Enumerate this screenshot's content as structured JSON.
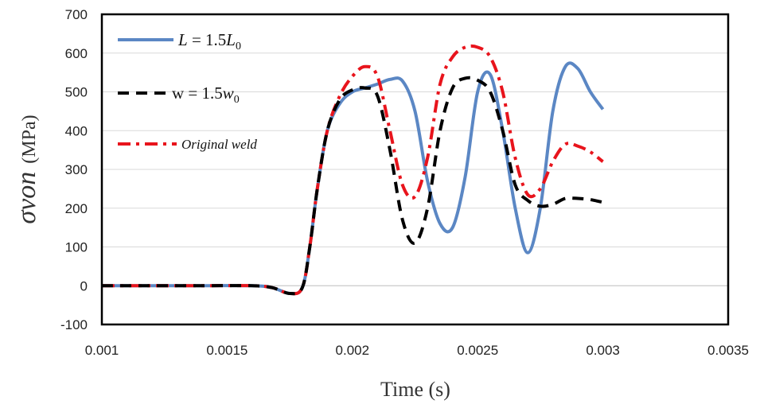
{
  "chart_data": {
    "type": "line",
    "xlabel": "Time (s)",
    "ylabel_symbol": "σvon",
    "ylabel_unit": "(MPa)",
    "xlim": [
      0.001,
      0.0035
    ],
    "ylim": [
      -100,
      700
    ],
    "xticks": [
      "0.001",
      "0.0015",
      "0.002",
      "0.0025",
      "0.003",
      "0.0035"
    ],
    "xtick_values": [
      0.001,
      0.0015,
      0.002,
      0.0025,
      0.003,
      0.0035
    ],
    "yticks": [
      "-100",
      "0",
      "100",
      "200",
      "300",
      "400",
      "500",
      "600",
      "700"
    ],
    "ytick_values": [
      -100,
      0,
      100,
      200,
      300,
      400,
      500,
      600,
      700
    ],
    "grid": "horizontal",
    "legend_placement": "top-left",
    "series": [
      {
        "name": "L = 1.5L0",
        "legend_parts": {
          "lhs": "L",
          "eq": " = 1.5",
          "var": "L",
          "sub": "0"
        },
        "color": "#5b87c4",
        "style": "solid",
        "x": [
          0.001,
          0.0012,
          0.0014,
          0.0016,
          0.00168,
          0.00175,
          0.0018,
          0.00183,
          0.00186,
          0.0019,
          0.00195,
          0.002,
          0.00205,
          0.0021,
          0.00215,
          0.0022,
          0.00225,
          0.0023,
          0.00235,
          0.0024,
          0.00245,
          0.0025,
          0.00255,
          0.0026,
          0.00265,
          0.0027,
          0.00275,
          0.0028,
          0.00285,
          0.0029,
          0.00295,
          0.003
        ],
        "y": [
          0,
          0,
          0,
          0,
          -5,
          -20,
          -5,
          100,
          250,
          400,
          470,
          500,
          510,
          520,
          532,
          528,
          450,
          270,
          160,
          150,
          280,
          500,
          545,
          400,
          200,
          85,
          200,
          450,
          565,
          560,
          500,
          455
        ]
      },
      {
        "name": "w = 1.5w0",
        "legend_parts": {
          "lhs": "w",
          "eq": " = 1.5",
          "var": "w",
          "sub": "0"
        },
        "color": "#000000",
        "style": "dashed",
        "x": [
          0.001,
          0.0012,
          0.0014,
          0.0016,
          0.00168,
          0.00175,
          0.0018,
          0.00183,
          0.00186,
          0.0019,
          0.00195,
          0.002,
          0.00205,
          0.0021,
          0.00215,
          0.0022,
          0.00225,
          0.0023,
          0.00235,
          0.0024,
          0.00245,
          0.0025,
          0.00255,
          0.0026,
          0.00265,
          0.0027,
          0.00275,
          0.0028,
          0.00285,
          0.0029,
          0.00295,
          0.003
        ],
        "y": [
          0,
          0,
          0,
          0,
          -5,
          -20,
          -5,
          100,
          250,
          400,
          480,
          505,
          510,
          490,
          350,
          170,
          110,
          200,
          400,
          510,
          535,
          530,
          500,
          400,
          260,
          220,
          205,
          210,
          225,
          225,
          222,
          215
        ]
      },
      {
        "name": "Original weld",
        "color": "#e8141c",
        "style": "dashdot",
        "x": [
          0.001,
          0.0012,
          0.0014,
          0.0016,
          0.00168,
          0.00175,
          0.0018,
          0.00183,
          0.00186,
          0.0019,
          0.00195,
          0.002,
          0.00205,
          0.0021,
          0.00215,
          0.0022,
          0.00225,
          0.0023,
          0.00235,
          0.0024,
          0.00245,
          0.0025,
          0.00255,
          0.0026,
          0.00265,
          0.0027,
          0.00275,
          0.0028,
          0.00285,
          0.0029,
          0.00295,
          0.003
        ],
        "y": [
          0,
          0,
          0,
          0,
          -5,
          -20,
          -5,
          100,
          250,
          400,
          490,
          540,
          565,
          540,
          400,
          260,
          230,
          330,
          520,
          590,
          615,
          615,
          590,
          500,
          330,
          235,
          250,
          320,
          365,
          360,
          345,
          320
        ]
      }
    ]
  }
}
